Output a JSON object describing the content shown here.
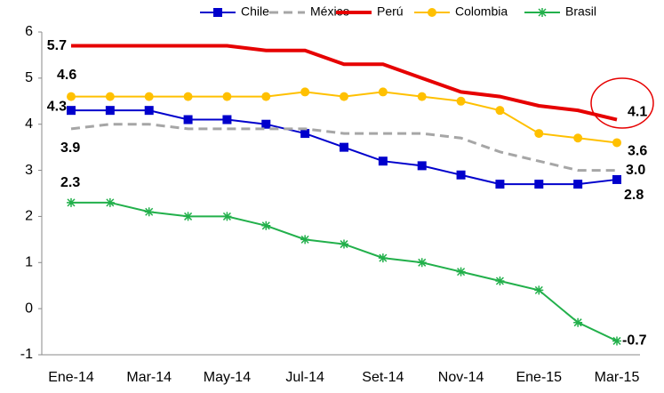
{
  "chart_data": {
    "type": "line",
    "categories": [
      "Ene-14",
      null,
      "Mar-14",
      null,
      "May-14",
      null,
      "Jul-14",
      null,
      "Set-14",
      null,
      "Nov-14",
      null,
      "Ene-15",
      null,
      "Mar-15"
    ],
    "ylim": [
      -1,
      6
    ],
    "yticks": [
      -1,
      0,
      1,
      2,
      3,
      4,
      5,
      6
    ],
    "grid": false,
    "legend": "top",
    "series": [
      {
        "name": "Chile",
        "color": "#0000cc",
        "marker": "square",
        "dash": false,
        "values": [
          4.3,
          4.3,
          4.3,
          4.1,
          4.1,
          4.0,
          3.8,
          3.5,
          3.2,
          3.1,
          2.9,
          2.7,
          2.7,
          2.7,
          2.8
        ],
        "value_labels": [
          "4.3",
          null,
          null,
          null,
          null,
          null,
          null,
          null,
          null,
          null,
          null,
          null,
          null,
          null,
          "2.8"
        ]
      },
      {
        "name": "México",
        "color": "#a6a6a6",
        "marker": "none",
        "dash": true,
        "values": [
          3.9,
          4.0,
          4.0,
          3.9,
          3.9,
          3.9,
          3.9,
          3.8,
          3.8,
          3.8,
          3.7,
          3.4,
          3.2,
          3.0,
          3.0
        ],
        "value_labels": [
          "3.9",
          null,
          null,
          null,
          null,
          null,
          null,
          null,
          null,
          null,
          null,
          null,
          null,
          null,
          "3.0"
        ]
      },
      {
        "name": "Perú",
        "color": "#e60000",
        "marker": "none",
        "dash": false,
        "values": [
          5.7,
          5.7,
          5.7,
          5.7,
          5.7,
          5.6,
          5.6,
          5.3,
          5.3,
          5.0,
          4.7,
          4.6,
          4.4,
          4.3,
          4.1
        ],
        "value_labels": [
          "5.7",
          null,
          null,
          null,
          null,
          null,
          null,
          null,
          null,
          null,
          null,
          null,
          null,
          null,
          "4.1"
        ]
      },
      {
        "name": "Colombia",
        "color": "#ffc000",
        "marker": "circle",
        "dash": false,
        "values": [
          4.6,
          4.6,
          4.6,
          4.6,
          4.6,
          4.6,
          4.7,
          4.6,
          4.7,
          4.6,
          4.5,
          4.3,
          3.8,
          3.7,
          3.6
        ],
        "value_labels": [
          "4.6",
          null,
          null,
          null,
          null,
          null,
          null,
          null,
          null,
          null,
          null,
          null,
          null,
          null,
          "3.6"
        ]
      },
      {
        "name": "Brasil",
        "color": "#22b04b",
        "marker": "star",
        "dash": false,
        "values": [
          2.3,
          2.3,
          2.1,
          2.0,
          2.0,
          1.8,
          1.5,
          1.4,
          1.1,
          1.0,
          0.8,
          0.6,
          0.4,
          -0.3,
          -0.7
        ],
        "value_labels": [
          "2.3",
          null,
          null,
          null,
          null,
          null,
          null,
          null,
          null,
          null,
          null,
          null,
          null,
          null,
          "-0.7"
        ]
      }
    ]
  }
}
